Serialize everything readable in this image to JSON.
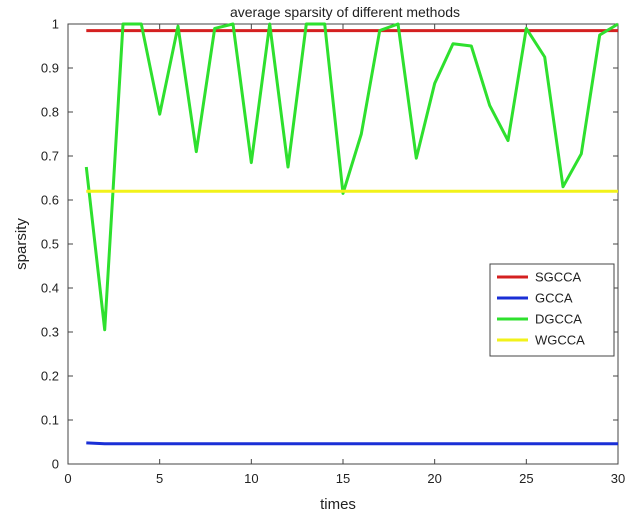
{
  "chart_data": {
    "type": "line",
    "title": "average sparsity of different methods",
    "xlabel": "times",
    "ylabel": "sparsity",
    "xlim": [
      0,
      30
    ],
    "ylim": [
      0,
      1
    ],
    "xticks": [
      0,
      5,
      10,
      15,
      20,
      25,
      30
    ],
    "yticks": [
      0,
      0.1,
      0.2,
      0.3,
      0.4,
      0.5,
      0.6,
      0.7,
      0.8,
      0.9,
      1
    ],
    "grid": false,
    "legend_position": "right-middle",
    "x": [
      1,
      2,
      3,
      4,
      5,
      6,
      7,
      8,
      9,
      10,
      11,
      12,
      13,
      14,
      15,
      16,
      17,
      18,
      19,
      20,
      21,
      22,
      23,
      24,
      25,
      26,
      27,
      28,
      29,
      30
    ],
    "series": [
      {
        "name": "SGCCA",
        "color": "#d42020",
        "values": [
          0.985,
          0.985,
          0.985,
          0.985,
          0.985,
          0.985,
          0.985,
          0.985,
          0.985,
          0.985,
          0.985,
          0.985,
          0.985,
          0.985,
          0.985,
          0.985,
          0.985,
          0.985,
          0.985,
          0.985,
          0.985,
          0.985,
          0.985,
          0.985,
          0.985,
          0.985,
          0.985,
          0.985,
          0.985,
          0.985
        ]
      },
      {
        "name": "GCCA",
        "color": "#1a2fd6",
        "values": [
          0.048,
          0.046,
          0.046,
          0.046,
          0.046,
          0.046,
          0.046,
          0.046,
          0.046,
          0.046,
          0.046,
          0.046,
          0.046,
          0.046,
          0.046,
          0.046,
          0.046,
          0.046,
          0.046,
          0.046,
          0.046,
          0.046,
          0.046,
          0.046,
          0.046,
          0.046,
          0.046,
          0.046,
          0.046,
          0.046
        ]
      },
      {
        "name": "DGCCA",
        "color": "#2ee02e",
        "values": [
          0.675,
          0.305,
          1.0,
          1.0,
          0.795,
          0.995,
          0.71,
          0.99,
          1.0,
          0.685,
          1.0,
          0.675,
          1.0,
          1.0,
          0.615,
          0.75,
          0.985,
          1.0,
          0.695,
          0.865,
          0.955,
          0.95,
          0.815,
          0.735,
          0.99,
          0.925,
          0.63,
          0.705,
          0.975,
          1.0
        ]
      },
      {
        "name": "WGCCA",
        "color": "#f2f21a",
        "values": [
          0.62,
          0.62,
          0.62,
          0.62,
          0.62,
          0.62,
          0.62,
          0.62,
          0.62,
          0.62,
          0.62,
          0.62,
          0.62,
          0.62,
          0.62,
          0.62,
          0.62,
          0.62,
          0.62,
          0.62,
          0.62,
          0.62,
          0.62,
          0.62,
          0.62,
          0.62,
          0.62,
          0.62,
          0.62,
          0.62
        ]
      }
    ]
  }
}
